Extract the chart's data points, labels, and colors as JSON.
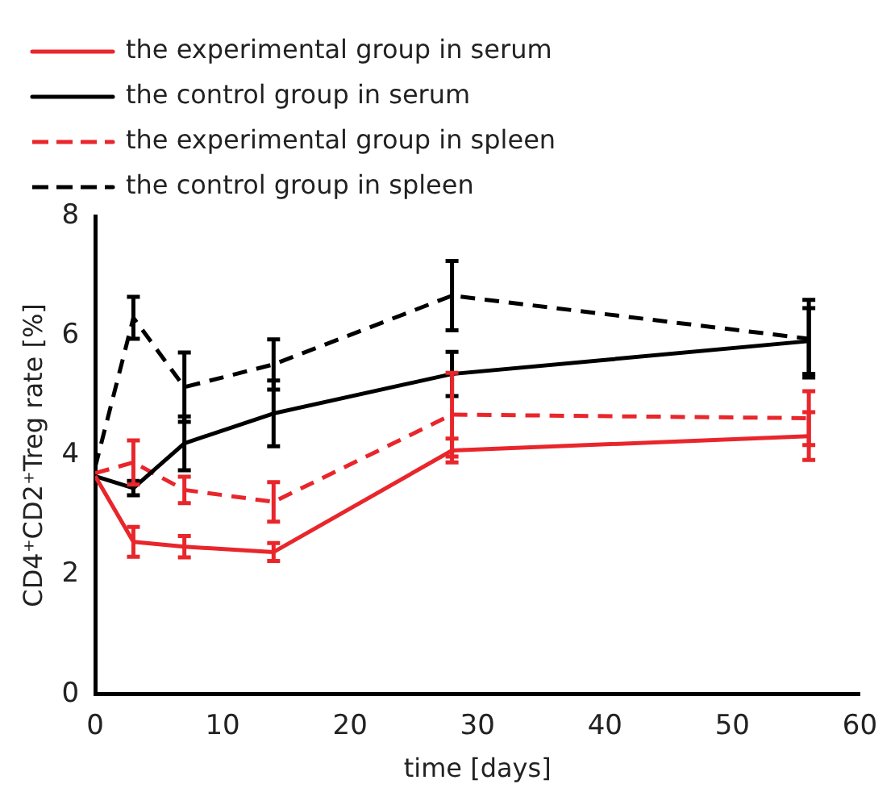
{
  "chart_data": {
    "type": "line",
    "xlabel": "time [days]",
    "ylabel": "CD4⁺CD2⁺Treg rate [%]",
    "x": [
      0,
      3,
      7,
      14,
      28,
      56
    ],
    "series": [
      {
        "name": "the experimental group in serum",
        "color": "#e8262b",
        "line_style": "solid",
        "values": [
          3.65,
          2.55,
          2.47,
          2.38,
          4.08,
          4.32
        ],
        "errors": [
          null,
          0.25,
          0.18,
          0.15,
          0.2,
          0.4
        ]
      },
      {
        "name": "the control group in serum",
        "color": "#000000",
        "line_style": "solid",
        "values": [
          3.65,
          3.45,
          4.2,
          4.7,
          5.36,
          5.91
        ],
        "errors": [
          null,
          0.12,
          0.45,
          0.55,
          0.37,
          0.55
        ]
      },
      {
        "name": "the experimental group in spleen",
        "color": "#e8262b",
        "line_style": "dashed",
        "values": [
          3.7,
          3.88,
          3.42,
          3.22,
          4.68,
          4.62
        ],
        "errors": [
          null,
          0.37,
          0.22,
          0.33,
          0.7,
          0.45
        ]
      },
      {
        "name": "the control group in spleen",
        "color": "#000000",
        "line_style": "dashed",
        "values": [
          3.8,
          6.3,
          5.14,
          5.52,
          6.67,
          5.95
        ],
        "errors": [
          null,
          0.35,
          0.58,
          0.42,
          0.58,
          0.65
        ]
      }
    ],
    "xlim": [
      0,
      60
    ],
    "xticks": [
      0,
      10,
      20,
      30,
      40,
      50,
      60
    ],
    "ylim": [
      0,
      8
    ],
    "yticks": [
      0,
      2,
      4,
      6,
      8
    ],
    "grid": false,
    "legend": "top",
    "marker": "none"
  }
}
